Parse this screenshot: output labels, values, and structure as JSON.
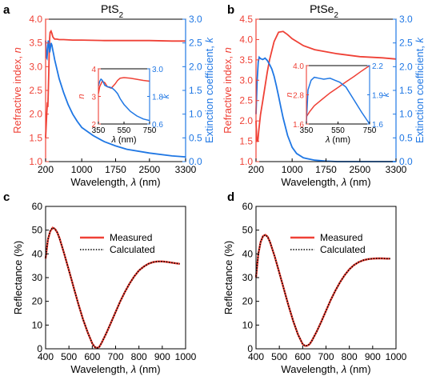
{
  "colors": {
    "measured": "#ef4136",
    "calculated": "#000000",
    "extinction": "#1f77e4",
    "axis": "#000000"
  },
  "chart_data": [
    {
      "panel": "a",
      "type": "line",
      "title_base": "PtS",
      "title_sub": "2",
      "xlabel_pre": "Wavelength, ",
      "xlabel_sym": "λ",
      "xlabel_post": " (nm)",
      "ylabel_left_pre": "Refractive index, ",
      "ylabel_left_sym": "n",
      "ylabel_right_pre": "Extinction coefficient, ",
      "ylabel_right_sym": "k",
      "xlim": [
        200,
        3300
      ],
      "ylim_left": [
        1.0,
        4.0
      ],
      "ylim_right": [
        0.0,
        3.0
      ],
      "xticks": [
        200,
        1000,
        1750,
        2500,
        3300
      ],
      "yticks_left": [
        "1.0",
        "1.5",
        "2.0",
        "2.5",
        "3.0",
        "3.5",
        "4.0"
      ],
      "yticks_right": [
        "0.0",
        "0.5",
        "1.0",
        "1.5",
        "2.0",
        "2.5",
        "3.0"
      ],
      "series": [
        {
          "axis": "left",
          "color_key": "measured",
          "x": [
            200,
            225,
            240,
            250,
            260,
            270,
            280,
            290,
            300,
            320,
            340,
            360,
            380,
            400,
            450,
            500,
            600,
            800,
            1000,
            1500,
            2000,
            2500,
            3000,
            3300
          ],
          "y": [
            1.5,
            2.0,
            2.25,
            2.15,
            2.5,
            2.9,
            3.3,
            3.6,
            3.72,
            3.75,
            3.7,
            3.63,
            3.6,
            3.58,
            3.58,
            3.57,
            3.57,
            3.56,
            3.56,
            3.55,
            3.55,
            3.55,
            3.54,
            3.54
          ]
        },
        {
          "axis": "right",
          "color_key": "extinction",
          "x": [
            200,
            210,
            220,
            230,
            240,
            250,
            260,
            270,
            280,
            290,
            300,
            320,
            340,
            360,
            380,
            400,
            450,
            500,
            600,
            700,
            800,
            900,
            1000,
            1250,
            1500,
            1750,
            2000,
            2500,
            3000,
            3300
          ],
          "y": [
            2.55,
            2.35,
            2.2,
            2.18,
            2.3,
            2.45,
            2.55,
            2.52,
            2.4,
            2.3,
            2.35,
            2.5,
            2.45,
            2.35,
            2.25,
            2.15,
            1.95,
            1.75,
            1.45,
            1.2,
            1.0,
            0.85,
            0.72,
            0.55,
            0.42,
            0.33,
            0.26,
            0.18,
            0.12,
            0.1
          ]
        }
      ],
      "inset": {
        "xlim": [
          350,
          750
        ],
        "ylim_left": [
          2.0,
          4.0
        ],
        "ylim_right": [
          0.6,
          3.0
        ],
        "xticks": [
          350,
          550,
          750
        ],
        "yticks_left": [
          "2",
          "3",
          "4"
        ],
        "yticks_right": [
          "0.6",
          "1.8",
          "3.0"
        ],
        "xlabel_sym": "λ",
        "xlabel_post": " (nm)",
        "ylabel_left": "n",
        "ylabel_right": "k",
        "series": [
          {
            "axis": "left",
            "color_key": "measured",
            "x": [
              350,
              360,
              380,
              400,
              420,
              450,
              480,
              500,
              520,
              550,
              600,
              650,
              700,
              750
            ],
            "y": [
              3.1,
              3.35,
              3.55,
              3.5,
              3.35,
              3.3,
              3.45,
              3.58,
              3.66,
              3.68,
              3.66,
              3.62,
              3.58,
              3.55
            ]
          },
          {
            "axis": "right",
            "color_key": "extinction",
            "x": [
              350,
              360,
              370,
              380,
              390,
              400,
              420,
              440,
              460,
              480,
              500,
              520,
              550,
              600,
              650,
              700,
              750
            ],
            "y": [
              2.25,
              2.45,
              2.55,
              2.5,
              2.4,
              2.28,
              2.22,
              2.2,
              2.15,
              2.05,
              1.92,
              1.7,
              1.45,
              1.15,
              0.95,
              0.82,
              0.75
            ]
          }
        ]
      }
    },
    {
      "panel": "b",
      "type": "line",
      "title_base": "PtSe",
      "title_sub": "2",
      "xlabel_pre": "Wavelength, ",
      "xlabel_sym": "λ",
      "xlabel_post": " (nm)",
      "ylabel_left_pre": "Refractive index, ",
      "ylabel_left_sym": "n",
      "ylabel_right_pre": "Extinction coefficient, ",
      "ylabel_right_sym": "k",
      "xlim": [
        200,
        3300
      ],
      "ylim_left": [
        1.0,
        4.5
      ],
      "ylim_right": [
        0.0,
        3.0
      ],
      "xticks": [
        200,
        1000,
        1750,
        2500,
        3300
      ],
      "yticks_left": [
        "1.0",
        "1.5",
        "2.0",
        "2.5",
        "3.0",
        "3.5",
        "4.0",
        "4.5"
      ],
      "yticks_right": [
        "0.0",
        "0.5",
        "1.0",
        "1.5",
        "2.0",
        "2.5",
        "3.0"
      ],
      "series": [
        {
          "axis": "left",
          "color_key": "measured",
          "x": [
            200,
            220,
            240,
            260,
            280,
            300,
            350,
            400,
            450,
            500,
            600,
            700,
            800,
            900,
            1000,
            1250,
            1500,
            2000,
            2500,
            3000,
            3300
          ],
          "y": [
            2.0,
            1.5,
            1.5,
            1.75,
            1.95,
            2.15,
            2.5,
            2.85,
            3.2,
            3.5,
            3.95,
            4.18,
            4.2,
            4.12,
            4.02,
            3.85,
            3.75,
            3.65,
            3.58,
            3.55,
            3.52
          ]
        },
        {
          "axis": "right",
          "color_key": "extinction",
          "x": [
            200,
            225,
            250,
            270,
            300,
            350,
            400,
            450,
            500,
            550,
            600,
            650,
            700,
            750,
            800,
            900,
            1000,
            1100,
            1250,
            1500,
            1750,
            2000,
            2500,
            3000,
            3300
          ],
          "y": [
            1.0,
            1.7,
            2.1,
            2.2,
            2.17,
            2.15,
            2.18,
            2.13,
            2.05,
            1.95,
            1.8,
            1.6,
            1.38,
            1.15,
            0.92,
            0.55,
            0.3,
            0.17,
            0.08,
            0.03,
            0.01,
            0.0,
            0.0,
            0.0,
            0.0
          ]
        }
      ],
      "inset": {
        "xlim": [
          350,
          750
        ],
        "ylim_left": [
          1.6,
          4.0
        ],
        "ylim_right": [
          1.6,
          2.2
        ],
        "xticks": [
          350,
          550,
          750
        ],
        "yticks_left": [
          "1.6",
          "2.8",
          "4.0"
        ],
        "yticks_right": [
          "1.6",
          "1.9",
          "2.2"
        ],
        "xlabel_sym": "λ",
        "xlabel_post": " (nm)",
        "ylabel_left": "n",
        "ylabel_right": "k",
        "series": [
          {
            "axis": "left",
            "color_key": "measured",
            "x": [
              350,
              370,
              400,
              450,
              500,
              550,
              600,
              650,
              700,
              750
            ],
            "y": [
              1.9,
              2.1,
              2.35,
              2.62,
              2.88,
              3.1,
              3.33,
              3.55,
              3.78,
              4.0
            ]
          },
          {
            "axis": "right",
            "color_key": "extinction",
            "x": [
              350,
              360,
              380,
              400,
              430,
              460,
              500,
              530,
              560,
              600,
              650,
              700,
              750
            ],
            "y": [
              1.62,
              1.95,
              2.05,
              2.08,
              2.07,
              2.06,
              2.07,
              2.05,
              2.03,
              1.98,
              1.85,
              1.72,
              1.6
            ]
          }
        ]
      }
    },
    {
      "panel": "c",
      "type": "line",
      "xlabel_pre": "Wavelength, ",
      "xlabel_sym": "λ",
      "xlabel_post": " (nm)",
      "ylabel": "Reflectance (%)",
      "xlim": [
        400,
        1000
      ],
      "ylim": [
        0,
        60
      ],
      "xticks": [
        400,
        500,
        600,
        700,
        800,
        900,
        1000
      ],
      "yticks": [
        0,
        10,
        20,
        30,
        40,
        50,
        60
      ],
      "legend_position": "upper-center",
      "series": [
        {
          "name": "Measured",
          "color_key": "measured",
          "style": "solid",
          "x": [
            400,
            410,
            420,
            430,
            440,
            450,
            460,
            480,
            500,
            520,
            540,
            560,
            580,
            600,
            610,
            620,
            630,
            640,
            660,
            680,
            700,
            720,
            740,
            760,
            780,
            800,
            820,
            840,
            860,
            880,
            900,
            920,
            940,
            960,
            975
          ],
          "y": [
            38,
            46,
            49.5,
            51,
            50.5,
            49,
            46.5,
            40,
            33,
            26,
            19,
            12.5,
            7,
            2.3,
            0.8,
            0.3,
            0.8,
            2.5,
            6.5,
            11,
            15.5,
            20,
            24,
            27.5,
            30.5,
            33,
            34.6,
            35.8,
            36.5,
            36.8,
            36.8,
            36.6,
            36.3,
            36,
            35.8
          ]
        },
        {
          "name": "Calculated",
          "color_key": "calculated",
          "style": "dotted",
          "x": [
            400,
            410,
            420,
            430,
            440,
            450,
            460,
            480,
            500,
            520,
            540,
            560,
            580,
            600,
            610,
            620,
            630,
            640,
            660,
            680,
            700,
            720,
            740,
            760,
            780,
            800,
            820,
            840,
            860,
            880,
            900,
            920,
            940,
            960,
            975
          ],
          "y": [
            38.5,
            46,
            49.7,
            51,
            50.6,
            49,
            46.4,
            40,
            33,
            26,
            19,
            12.5,
            7,
            2.3,
            0.8,
            0.3,
            0.8,
            2.5,
            6.5,
            11,
            15.5,
            20,
            24,
            27.5,
            30.5,
            33,
            34.6,
            35.8,
            36.5,
            36.8,
            36.8,
            36.6,
            36.3,
            36,
            35.8
          ]
        }
      ]
    },
    {
      "panel": "d",
      "type": "line",
      "xlabel_pre": "Wavelength, ",
      "xlabel_sym": "λ",
      "xlabel_post": " (nm)",
      "ylabel": "Reflectance (%)",
      "xlim": [
        400,
        1000
      ],
      "ylim": [
        0,
        60
      ],
      "xticks": [
        400,
        500,
        600,
        700,
        800,
        900,
        1000
      ],
      "yticks": [
        0,
        10,
        20,
        30,
        40,
        50,
        60
      ],
      "legend_position": "upper-center",
      "series": [
        {
          "name": "Measured",
          "color_key": "measured",
          "style": "solid",
          "x": [
            400,
            410,
            420,
            430,
            440,
            450,
            460,
            480,
            500,
            520,
            540,
            560,
            580,
            600,
            610,
            620,
            630,
            640,
            660,
            680,
            700,
            720,
            740,
            760,
            780,
            800,
            820,
            840,
            860,
            880,
            900,
            920,
            940,
            960,
            975
          ],
          "y": [
            30,
            40,
            45,
            47.5,
            48,
            47.2,
            45,
            39,
            32,
            25,
            18,
            11.5,
            6,
            2,
            1.2,
            1.3,
            2,
            3.5,
            7.2,
            11.5,
            16,
            20.5,
            24.5,
            28,
            31,
            33.5,
            35.3,
            36.5,
            37.3,
            37.8,
            38,
            38.1,
            38.1,
            38,
            38
          ]
        },
        {
          "name": "Calculated",
          "color_key": "calculated",
          "style": "dotted",
          "x": [
            400,
            410,
            420,
            430,
            440,
            450,
            460,
            480,
            500,
            520,
            540,
            560,
            580,
            600,
            610,
            620,
            630,
            640,
            660,
            680,
            700,
            720,
            740,
            760,
            780,
            800,
            820,
            840,
            860,
            880,
            900,
            920,
            940,
            960,
            975
          ],
          "y": [
            30.5,
            40,
            45,
            47.5,
            48,
            47.2,
            45,
            39,
            32,
            25,
            18,
            11.5,
            6,
            2,
            1.2,
            1.3,
            2,
            3.5,
            7.2,
            11.5,
            16,
            20.5,
            24.5,
            28,
            31,
            33.5,
            35.3,
            36.5,
            37.3,
            37.8,
            38,
            38.1,
            38.1,
            38,
            38
          ]
        }
      ]
    }
  ]
}
